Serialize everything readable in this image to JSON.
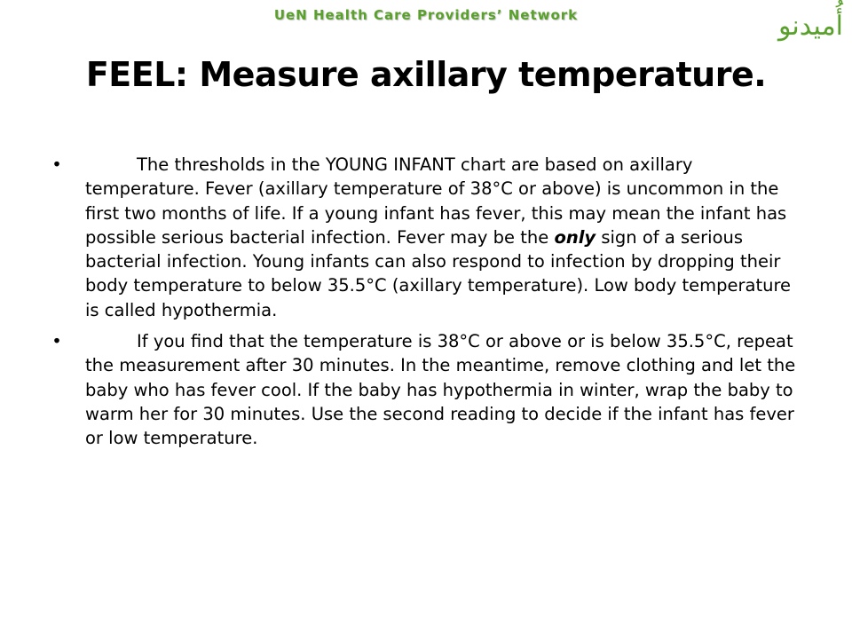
{
  "header": {
    "network_name": "UeN Health Care Providers’ Network",
    "logo_text": "أُمیدنو"
  },
  "slide": {
    "title": "FEEL: Measure axillary temperature.",
    "bullets": [
      {
        "text_before": "The thresholds in the YOUNG INFANT chart are based on axillary temperature. Fever (axillary temperature of 38°C or above) is uncommon in the first two months of life.  If a young infant has fever, this may mean the infant has possible serious bacterial infection.  Fever may be the ",
        "emphasis": "only",
        "text_after": " sign of a serious bacterial infection.  Young infants can also respond to infection by dropping their body temperature to below 35.5°C (axillary temperature).  Low body temperature is called hypothermia."
      },
      {
        "text": "If you find that the temperature is 38°C or above or is below 35.5°C, repeat the measurement after 30 minutes. In the meantime, remove clothing and let the baby who has fever cool.  If the baby has hypothermia in winter, wrap the baby to warm her for 30 minutes. Use the second reading to decide if the infant has fever or low temperature."
      }
    ],
    "bullet_glyph": "•"
  },
  "colors": {
    "brand_green": "#5aa02c",
    "text": "#000000",
    "background": "#ffffff"
  }
}
